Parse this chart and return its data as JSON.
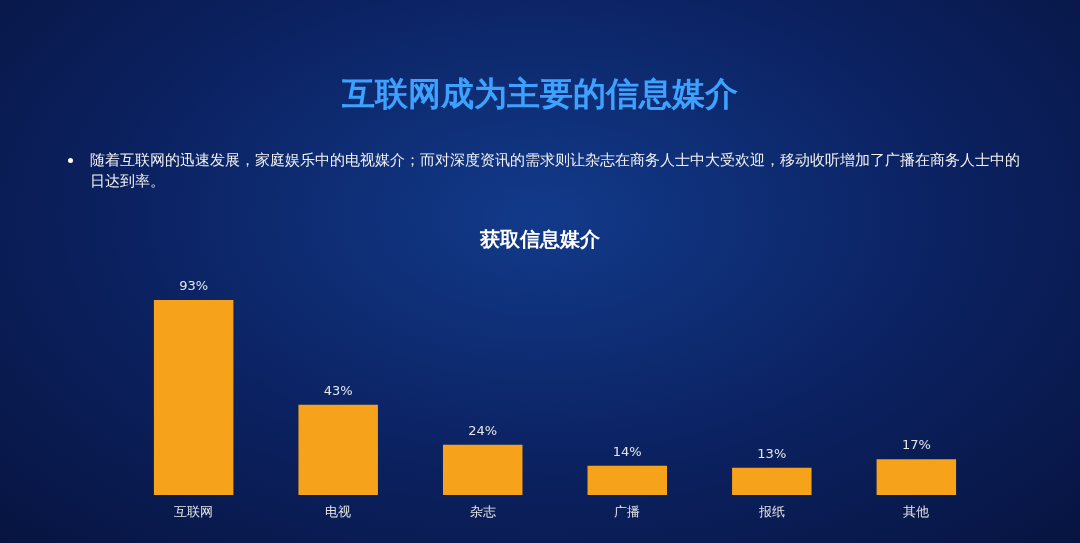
{
  "chart_data": {
    "type": "bar",
    "title": "互联网成为主要的信息媒介",
    "subtitle": "随着互联网的迅速发展，家庭娱乐中的电视媒介；而对深度资讯的需求则让杂志在商务人士中大受欢迎，移动收听增加了广播在商务人士中的日达到率。",
    "annotations": [
      "获取信息媒介"
    ],
    "categories": [
      "互联网",
      "电视",
      "杂志",
      "广播",
      "报纸",
      "其他"
    ],
    "values": [
      93,
      43,
      24,
      14,
      13,
      17
    ],
    "value_labels": [
      "93%",
      "43%",
      "24%",
      "14%",
      "13%",
      "17%"
    ],
    "color": "#f7a21b"
  }
}
